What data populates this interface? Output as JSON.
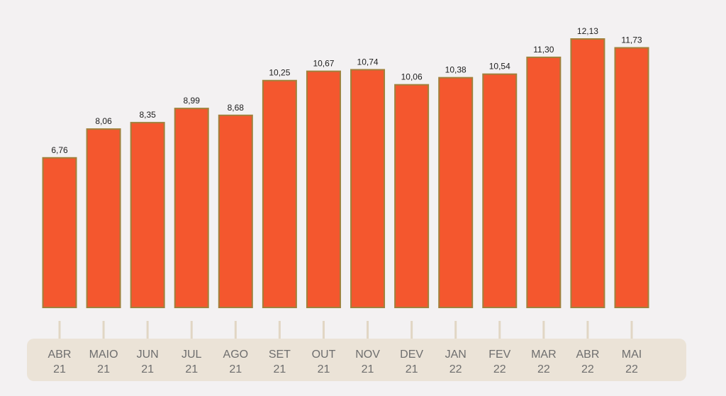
{
  "chart_data": {
    "type": "bar",
    "categories": [
      [
        "ABR",
        "21"
      ],
      [
        "MAIO",
        "21"
      ],
      [
        "JUN",
        "21"
      ],
      [
        "JUL",
        "21"
      ],
      [
        "AGO",
        "21"
      ],
      [
        "SET",
        "21"
      ],
      [
        "OUT",
        "21"
      ],
      [
        "NOV",
        "21"
      ],
      [
        "DEV",
        "21"
      ],
      [
        "JAN",
        "22"
      ],
      [
        "FEV",
        "22"
      ],
      [
        "MAR",
        "22"
      ],
      [
        "ABR",
        "22"
      ],
      [
        "MAI",
        "22"
      ]
    ],
    "values": [
      6.76,
      8.06,
      8.35,
      8.99,
      8.68,
      10.25,
      10.67,
      10.74,
      10.06,
      10.38,
      10.54,
      11.3,
      12.13,
      11.73
    ],
    "value_labels": [
      "6,76",
      "8,06",
      "8,35",
      "8,99",
      "8,68",
      "10,25",
      "10,67",
      "10,74",
      "10,06",
      "10,38",
      "10,54",
      "11,30",
      "12,13",
      "11,73"
    ],
    "title": "",
    "xlabel": "",
    "ylabel": "",
    "ylim": [
      0,
      12.13
    ],
    "grid": false,
    "colors": {
      "bar": "#f4572e",
      "bar_edge": "#a0813c",
      "axis_band": "#ebe3d7",
      "tick": "#e1d6c4",
      "label_text": "#1c1c1c",
      "category_text": "#6e6e6e",
      "background": "#f3f1f2"
    }
  }
}
